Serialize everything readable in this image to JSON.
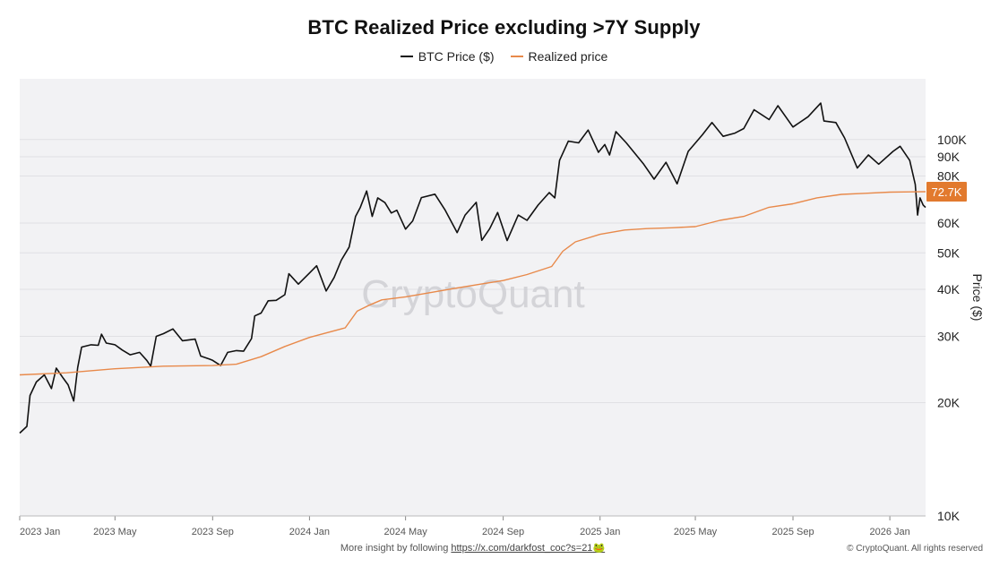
{
  "chart_data": {
    "type": "line",
    "title": "BTC Realized Price excluding >7Y Supply",
    "ylabel": "Price ($)",
    "xlabel": "",
    "y_scale": "log",
    "ylim": [
      10000,
      145000
    ],
    "xlim": [
      "2023-01-01",
      "2026-02-15"
    ],
    "y_ticks": [
      {
        "value": 100000,
        "label": "100K"
      },
      {
        "value": 90000,
        "label": "90K"
      },
      {
        "value": 80000,
        "label": "80K"
      },
      {
        "value": 60000,
        "label": "60K"
      },
      {
        "value": 50000,
        "label": "50K"
      },
      {
        "value": 40000,
        "label": "40K"
      },
      {
        "value": 30000,
        "label": "30K"
      },
      {
        "value": 20000,
        "label": "20K"
      },
      {
        "value": 10000,
        "label": "10K"
      }
    ],
    "x_ticks": [
      {
        "date": "2023-01-01",
        "label": "2023 Jan"
      },
      {
        "date": "2023-05-01",
        "label": "2023 May"
      },
      {
        "date": "2023-09-01",
        "label": "2023 Sep"
      },
      {
        "date": "2024-01-01",
        "label": "2024 Jan"
      },
      {
        "date": "2024-05-01",
        "label": "2024 May"
      },
      {
        "date": "2024-09-01",
        "label": "2024 Sep"
      },
      {
        "date": "2025-01-01",
        "label": "2025 Jan"
      },
      {
        "date": "2025-05-01",
        "label": "2025 May"
      },
      {
        "date": "2025-09-01",
        "label": "2025 Sep"
      },
      {
        "date": "2026-01-01",
        "label": "2026 Jan"
      }
    ],
    "grid": true,
    "legend_position": "top-center",
    "value_badge": {
      "label": "72.7K",
      "value": 72700
    },
    "series": [
      {
        "name": "BTC Price ($)",
        "color": "#111111",
        "points": [
          [
            "2023-01-01",
            16600
          ],
          [
            "2023-01-10",
            17300
          ],
          [
            "2023-01-14",
            20900
          ],
          [
            "2023-01-22",
            22700
          ],
          [
            "2023-02-01",
            23700
          ],
          [
            "2023-02-10",
            21800
          ],
          [
            "2023-02-16",
            24700
          ],
          [
            "2023-02-25",
            23200
          ],
          [
            "2023-03-03",
            22300
          ],
          [
            "2023-03-10",
            20200
          ],
          [
            "2023-03-15",
            24800
          ],
          [
            "2023-03-20",
            28100
          ],
          [
            "2023-04-01",
            28500
          ],
          [
            "2023-04-10",
            28400
          ],
          [
            "2023-04-14",
            30400
          ],
          [
            "2023-04-20",
            28800
          ],
          [
            "2023-05-01",
            28500
          ],
          [
            "2023-05-10",
            27600
          ],
          [
            "2023-05-20",
            26800
          ],
          [
            "2023-06-01",
            27200
          ],
          [
            "2023-06-10",
            25900
          ],
          [
            "2023-06-15",
            25000
          ],
          [
            "2023-06-22",
            30000
          ],
          [
            "2023-07-01",
            30500
          ],
          [
            "2023-07-13",
            31400
          ],
          [
            "2023-07-25",
            29200
          ],
          [
            "2023-08-10",
            29500
          ],
          [
            "2023-08-17",
            26600
          ],
          [
            "2023-08-28",
            26100
          ],
          [
            "2023-09-01",
            25900
          ],
          [
            "2023-09-11",
            25100
          ],
          [
            "2023-09-20",
            27200
          ],
          [
            "2023-10-01",
            27500
          ],
          [
            "2023-10-10",
            27400
          ],
          [
            "2023-10-20",
            29600
          ],
          [
            "2023-10-24",
            34000
          ],
          [
            "2023-11-01",
            34600
          ],
          [
            "2023-11-10",
            37300
          ],
          [
            "2023-11-20",
            37400
          ],
          [
            "2023-12-01",
            38700
          ],
          [
            "2023-12-06",
            44000
          ],
          [
            "2023-12-18",
            41300
          ],
          [
            "2024-01-01",
            44200
          ],
          [
            "2024-01-10",
            46200
          ],
          [
            "2024-01-22",
            39600
          ],
          [
            "2024-02-01",
            43000
          ],
          [
            "2024-02-10",
            47800
          ],
          [
            "2024-02-20",
            51800
          ],
          [
            "2024-02-28",
            62500
          ],
          [
            "2024-03-05",
            66000
          ],
          [
            "2024-03-13",
            73000
          ],
          [
            "2024-03-20",
            62500
          ],
          [
            "2024-03-27",
            70000
          ],
          [
            "2024-04-05",
            68000
          ],
          [
            "2024-04-13",
            63800
          ],
          [
            "2024-04-20",
            64900
          ],
          [
            "2024-05-01",
            57800
          ],
          [
            "2024-05-10",
            60800
          ],
          [
            "2024-05-21",
            70100
          ],
          [
            "2024-06-07",
            71600
          ],
          [
            "2024-06-20",
            64900
          ],
          [
            "2024-07-05",
            56600
          ],
          [
            "2024-07-15",
            63000
          ],
          [
            "2024-07-29",
            68100
          ],
          [
            "2024-08-05",
            54000
          ],
          [
            "2024-08-15",
            58000
          ],
          [
            "2024-08-25",
            64000
          ],
          [
            "2024-09-06",
            53900
          ],
          [
            "2024-09-20",
            63000
          ],
          [
            "2024-10-01",
            61000
          ],
          [
            "2024-10-15",
            67000
          ],
          [
            "2024-10-29",
            72300
          ],
          [
            "2024-11-05",
            70000
          ],
          [
            "2024-11-11",
            88000
          ],
          [
            "2024-11-22",
            99000
          ],
          [
            "2024-12-05",
            98000
          ],
          [
            "2024-12-17",
            106000
          ],
          [
            "2024-12-30",
            92500
          ],
          [
            "2025-01-07",
            97000
          ],
          [
            "2025-01-13",
            91000
          ],
          [
            "2025-01-21",
            105000
          ],
          [
            "2025-02-03",
            98000
          ],
          [
            "2025-02-25",
            86000
          ],
          [
            "2025-03-10",
            78500
          ],
          [
            "2025-03-25",
            87000
          ],
          [
            "2025-04-08",
            76300
          ],
          [
            "2025-04-22",
            93000
          ],
          [
            "2025-05-10",
            103000
          ],
          [
            "2025-05-22",
            111000
          ],
          [
            "2025-06-05",
            102000
          ],
          [
            "2025-06-20",
            104000
          ],
          [
            "2025-07-01",
            107000
          ],
          [
            "2025-07-14",
            120000
          ],
          [
            "2025-08-02",
            113000
          ],
          [
            "2025-08-13",
            123000
          ],
          [
            "2025-09-01",
            108000
          ],
          [
            "2025-09-20",
            115000
          ],
          [
            "2025-10-06",
            125000
          ],
          [
            "2025-10-10",
            112000
          ],
          [
            "2025-10-25",
            111000
          ],
          [
            "2025-11-05",
            101000
          ],
          [
            "2025-11-21",
            84000
          ],
          [
            "2025-12-05",
            91000
          ],
          [
            "2025-12-18",
            86000
          ],
          [
            "2026-01-05",
            93000
          ],
          [
            "2026-01-14",
            96000
          ],
          [
            "2026-01-26",
            88000
          ],
          [
            "2026-02-02",
            76000
          ],
          [
            "2026-02-05",
            63000
          ],
          [
            "2026-02-08",
            70000
          ],
          [
            "2026-02-12",
            67000
          ],
          [
            "2026-02-15",
            66000
          ]
        ]
      },
      {
        "name": "Realized price",
        "color": "#e8894a",
        "points": [
          [
            "2023-01-01",
            23700
          ],
          [
            "2023-03-01",
            24000
          ],
          [
            "2023-05-01",
            24600
          ],
          [
            "2023-07-01",
            25000
          ],
          [
            "2023-09-01",
            25100
          ],
          [
            "2023-10-01",
            25300
          ],
          [
            "2023-11-01",
            26500
          ],
          [
            "2023-12-01",
            28200
          ],
          [
            "2024-01-01",
            29800
          ],
          [
            "2024-02-15",
            31600
          ],
          [
            "2024-03-01",
            35000
          ],
          [
            "2024-03-15",
            36200
          ],
          [
            "2024-04-01",
            37500
          ],
          [
            "2024-05-01",
            38200
          ],
          [
            "2024-06-01",
            39200
          ],
          [
            "2024-07-01",
            40200
          ],
          [
            "2024-08-01",
            41200
          ],
          [
            "2024-09-01",
            42200
          ],
          [
            "2024-10-01",
            43800
          ],
          [
            "2024-11-01",
            46000
          ],
          [
            "2024-11-15",
            50500
          ],
          [
            "2024-12-01",
            53500
          ],
          [
            "2025-01-01",
            56000
          ],
          [
            "2025-02-01",
            57500
          ],
          [
            "2025-03-01",
            58000
          ],
          [
            "2025-04-01",
            58300
          ],
          [
            "2025-05-01",
            58700
          ],
          [
            "2025-06-01",
            61000
          ],
          [
            "2025-07-01",
            62500
          ],
          [
            "2025-08-01",
            66000
          ],
          [
            "2025-09-01",
            67500
          ],
          [
            "2025-10-01",
            70000
          ],
          [
            "2025-11-01",
            71500
          ],
          [
            "2025-12-01",
            72000
          ],
          [
            "2026-01-01",
            72500
          ],
          [
            "2026-02-15",
            72700
          ]
        ]
      }
    ]
  },
  "legend": {
    "items": [
      {
        "label": "BTC Price ($)",
        "color": "#111111"
      },
      {
        "label": "Realized price",
        "color": "#e8894a"
      }
    ]
  },
  "watermark": "CryptoQuant",
  "footer": {
    "insight_text": "More insight by following",
    "link_text": "https://x.com/darkfost_coc?s=21",
    "link_emoji": "🐸",
    "copyright": "© CryptoQuant. All rights reserved"
  },
  "colors": {
    "plot_background": "#f2f2f4",
    "badge": "#e27a2e",
    "grid": "#e0e0e4"
  }
}
